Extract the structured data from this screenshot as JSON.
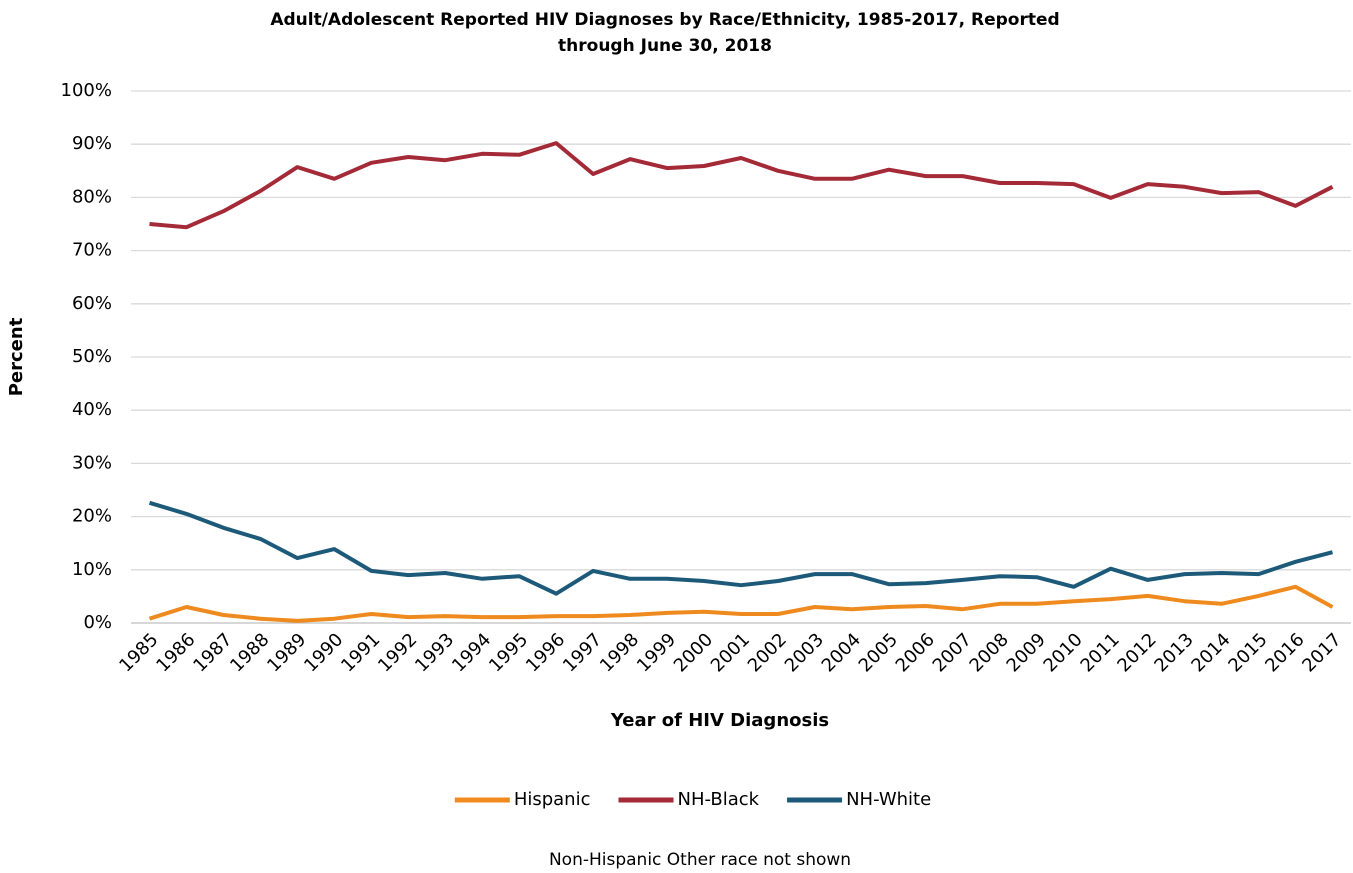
{
  "chart_data": {
    "type": "line",
    "title": [
      "Adult/Adolescent Reported HIV Diagnoses by Race/Ethnicity, 1985-2017, Reported",
      "through June 30, 2018"
    ],
    "x_label": "Year of HIV Diagnosis",
    "y_label": "Percent",
    "note": "Non-Hispanic Other race not shown",
    "categories": [
      "1985",
      "1986",
      "1987",
      "1988",
      "1989",
      "1990",
      "1991",
      "1992",
      "1993",
      "1994",
      "1995",
      "1996",
      "1997",
      "1998",
      "1999",
      "2000",
      "2001",
      "2002",
      "2003",
      "2004",
      "2005",
      "2006",
      "2007",
      "2008",
      "2009",
      "2010",
      "2011",
      "2012",
      "2013",
      "2014",
      "2015",
      "2016",
      "2017"
    ],
    "series": [
      {
        "name": "Hispanic",
        "color": "#ee8a1e",
        "values": [
          0.8,
          3.0,
          1.5,
          0.8,
          0.4,
          0.8,
          1.7,
          1.1,
          1.3,
          1.1,
          1.1,
          1.3,
          1.3,
          1.5,
          1.9,
          2.1,
          1.7,
          1.7,
          3.0,
          2.6,
          3.0,
          3.2,
          2.6,
          3.6,
          3.6,
          4.1,
          4.5,
          5.1,
          4.1,
          3.6,
          5.1,
          6.8,
          3.0
        ]
      },
      {
        "name": "NH-Black",
        "color": "#a42a37",
        "values": [
          75.0,
          74.4,
          77.4,
          81.2,
          85.7,
          83.5,
          86.5,
          87.6,
          87.0,
          88.2,
          88.0,
          90.2,
          84.4,
          87.2,
          85.5,
          85.9,
          87.4,
          85.0,
          83.5,
          83.5,
          85.2,
          84.0,
          84.0,
          82.7,
          82.7,
          82.5,
          79.9,
          82.5,
          82.0,
          80.8,
          81.0,
          78.4,
          82.0
        ]
      },
      {
        "name": "NH-White",
        "color": "#1d5a7a",
        "values": [
          22.6,
          20.5,
          17.9,
          15.8,
          12.2,
          13.9,
          9.8,
          9.0,
          9.4,
          8.3,
          8.8,
          5.5,
          9.8,
          8.3,
          8.3,
          7.9,
          7.1,
          7.9,
          9.2,
          9.2,
          7.3,
          7.5,
          8.1,
          8.8,
          8.6,
          6.8,
          10.2,
          8.1,
          9.2,
          9.4,
          9.2,
          11.5,
          13.3
        ]
      }
    ],
    "ylim": [
      0,
      100
    ],
    "yticks": [
      {
        "value": 0,
        "label": "0%"
      },
      {
        "value": 10,
        "label": "10%"
      },
      {
        "value": 20,
        "label": "20%"
      },
      {
        "value": 30,
        "label": "30%"
      },
      {
        "value": 40,
        "label": "40%"
      },
      {
        "value": 50,
        "label": "50%"
      },
      {
        "value": 60,
        "label": "60%"
      },
      {
        "value": 70,
        "label": "70%"
      },
      {
        "value": 80,
        "label": "80%"
      },
      {
        "value": 90,
        "label": "90%"
      },
      {
        "value": 100,
        "label": "100%"
      }
    ],
    "grid": true,
    "legend": "bottom"
  }
}
